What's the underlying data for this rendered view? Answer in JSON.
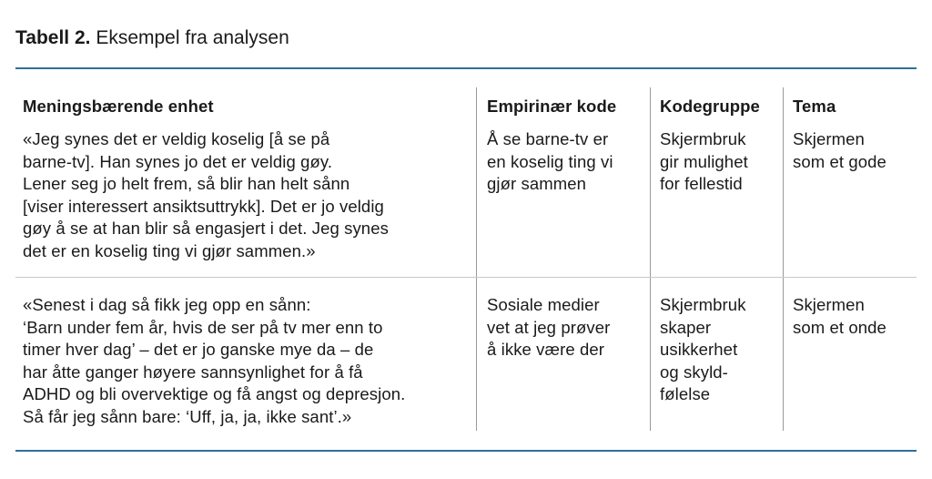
{
  "caption": {
    "label": "Tabell 2.",
    "text": " Eksempel fra analysen"
  },
  "table": {
    "headers": [
      "Meningsbærende enhet",
      "Empirinær kode",
      "Kodegruppe",
      "Tema"
    ],
    "rows": [
      [
        "«Jeg synes det er veldig koselig [å se på\nbarne-tv]. Han synes jo det er veldig gøy.\nLener seg jo helt frem, så blir han helt sånn\n[viser interessert ansiktsuttrykk]. Det er jo veldig\ngøy å se at han blir så engasjert i det. Jeg synes\ndet er en koselig ting vi gjør sammen.»",
        "Å se barne-tv er\nen koselig ting vi\ngjør sammen",
        "Skjermbruk\ngir mulighet\nfor fellestid",
        "Skjermen\nsom et gode"
      ],
      [
        "«Senest i dag så fikk jeg opp en sånn:\n‘Barn under fem år, hvis de ser på tv mer enn to\ntimer hver dag’ – det er jo ganske mye da – de\nhar åtte ganger høyere sannsynlighet for å få\nADHD og bli overvektige og få angst og depresjon.\nSå får jeg sånn bare: ‘Uff, ja, ja, ikke sant’.»",
        "Sosiale medier\nvet at jeg prøver\nå ikke være der",
        "Skjermbruk\nskaper\nusikkerhet\nog skyld-\nfølelse",
        "Skjermen\nsom et onde"
      ]
    ]
  },
  "colors": {
    "rule": "#2f6f99",
    "divider": "#9a9a9a"
  }
}
